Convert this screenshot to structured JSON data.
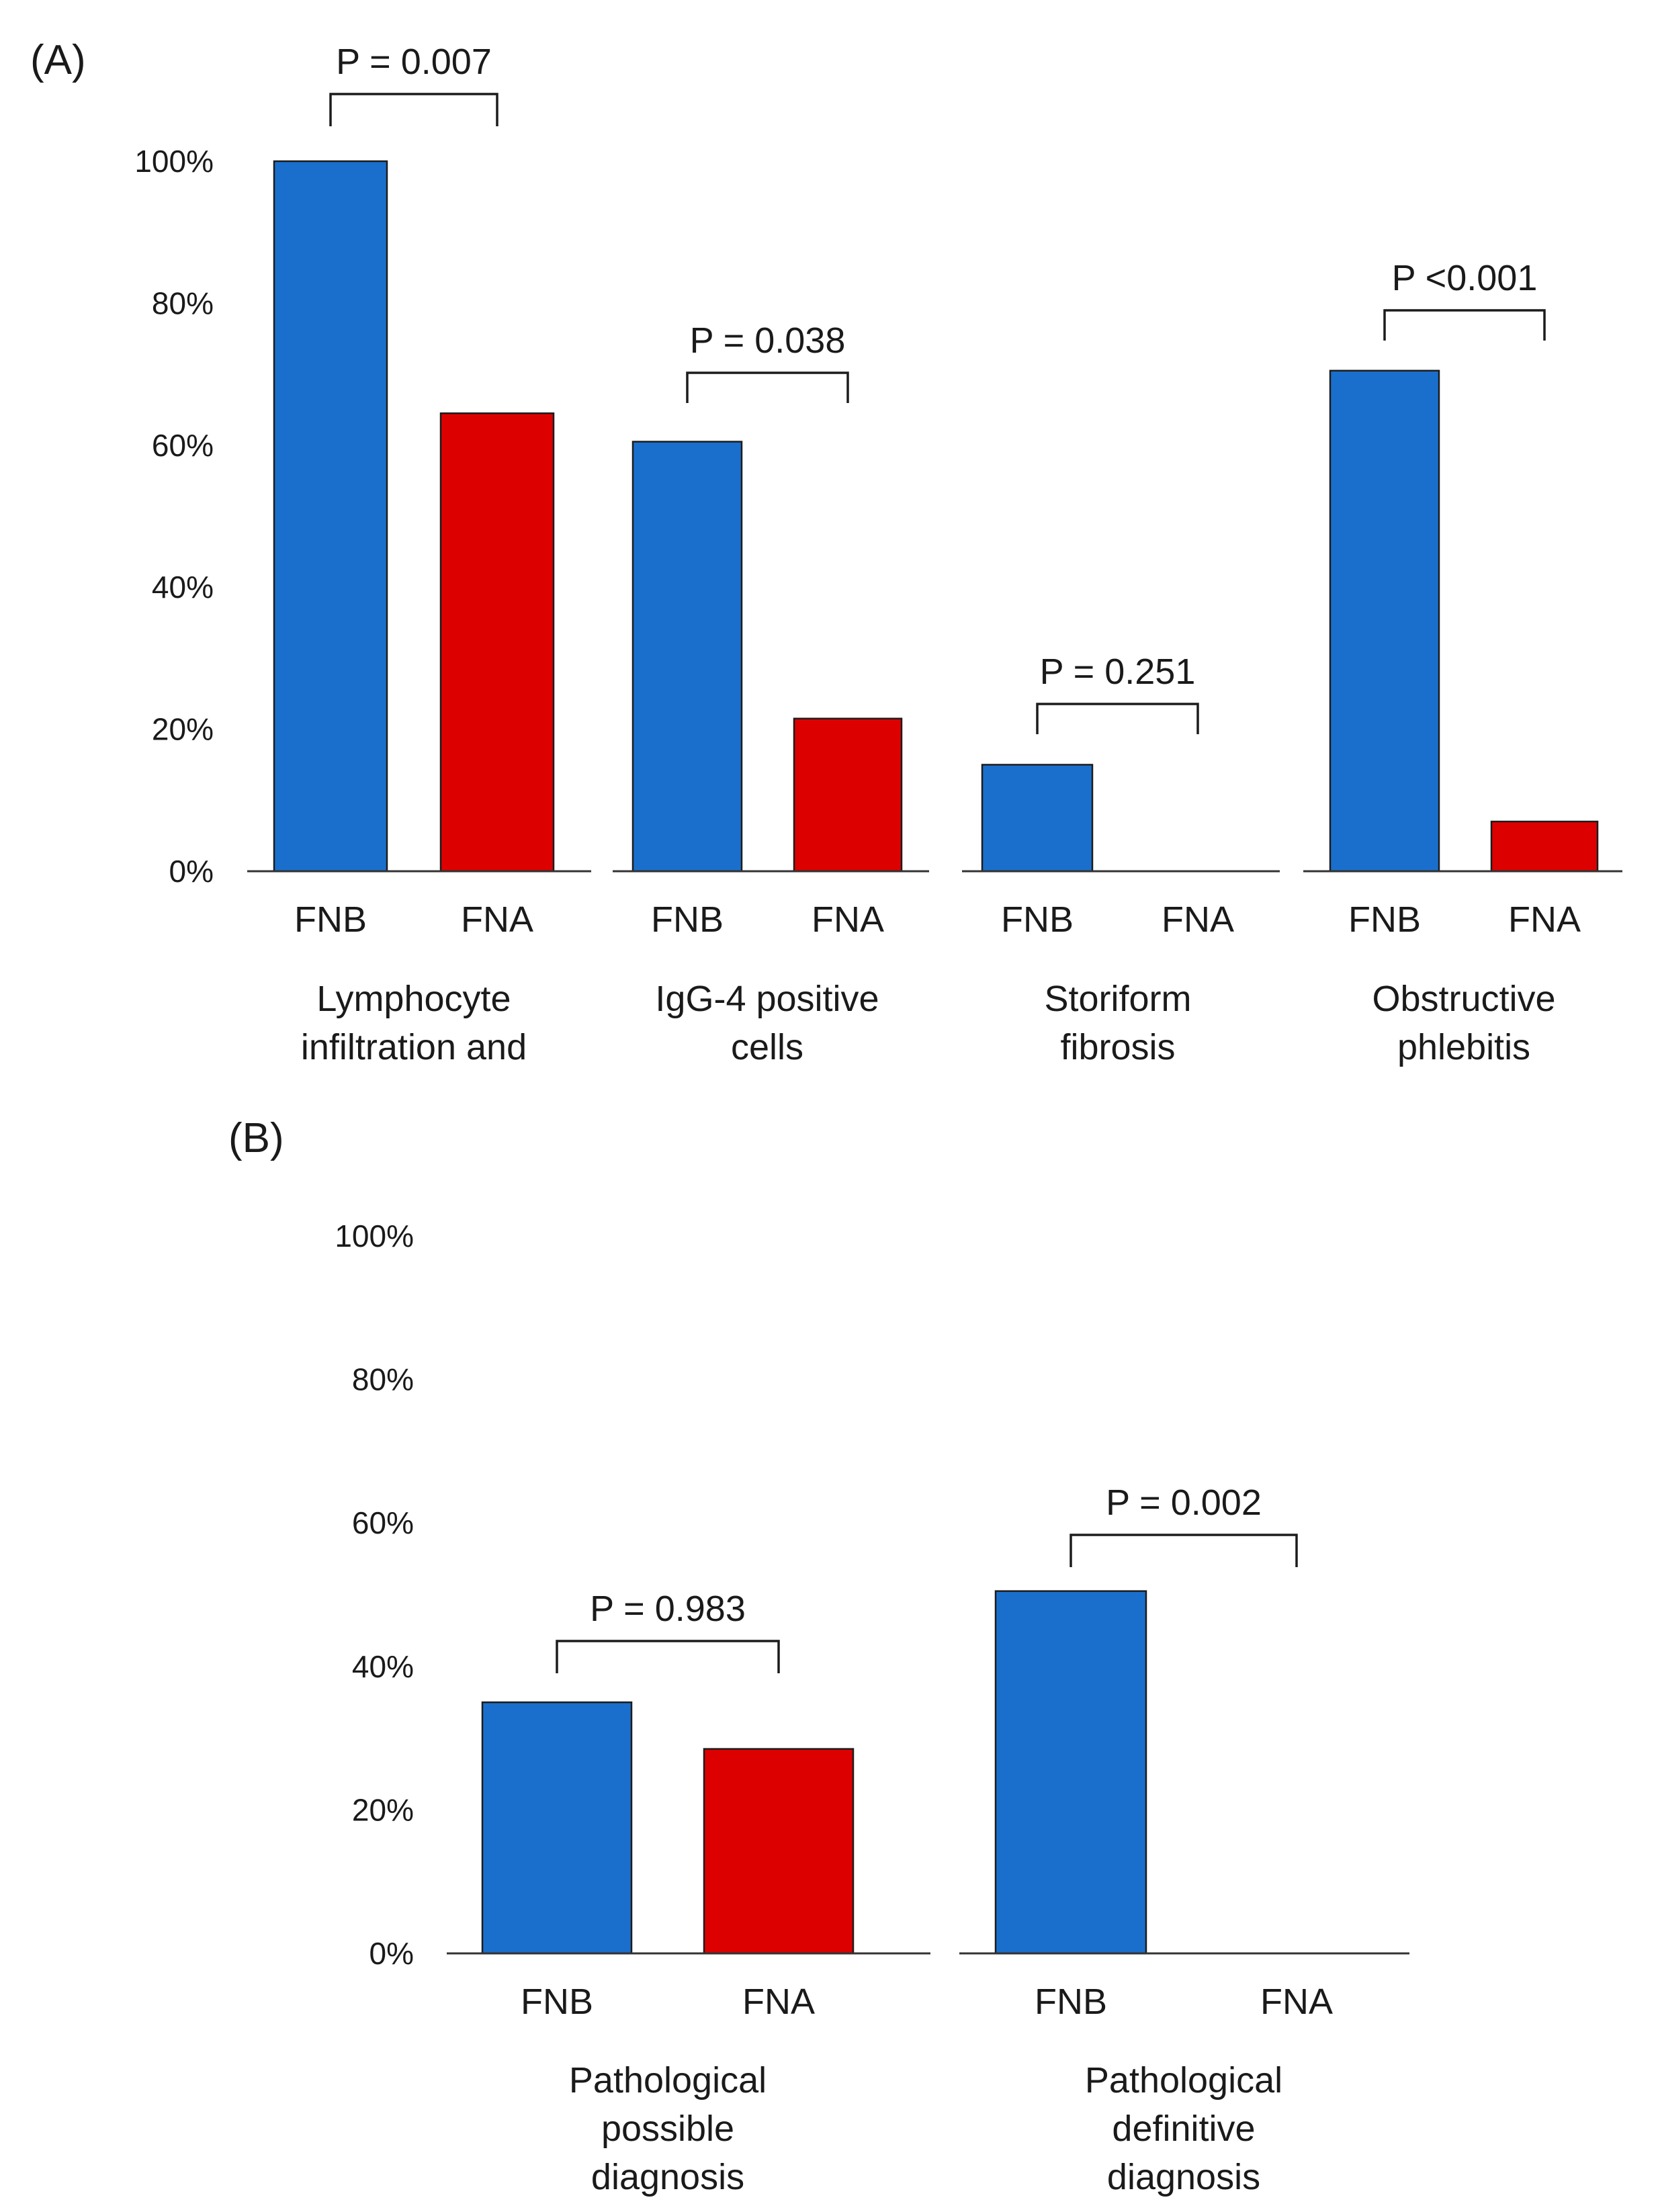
{
  "colors": {
    "FNB": "#1a6fcc",
    "FNA": "#dd0000",
    "axis": "#333333",
    "text": "#1a1a1a"
  },
  "chart_data": [
    {
      "type": "bar",
      "panel_label": "(A)",
      "title": "",
      "xlabel": "",
      "ylabel": "",
      "ylim": [
        0,
        100
      ],
      "yticks": [
        "0%",
        "20%",
        "40%",
        "60%",
        "80%",
        "100%"
      ],
      "grid": false,
      "groups": [
        {
          "label_lines": [
            "Lymphocyte",
            "infiltration and"
          ],
          "bars": [
            {
              "series": "FNB",
              "value": 100
            },
            {
              "series": "FNA",
              "value": 64.5
            }
          ],
          "p_value": "P = 0.007"
        },
        {
          "label_lines": [
            "IgG-4 positive",
            "cells"
          ],
          "bars": [
            {
              "series": "FNB",
              "value": 60.5
            },
            {
              "series": "FNA",
              "value": 21.5
            }
          ],
          "p_value": "P = 0.038"
        },
        {
          "label_lines": [
            "Storiform",
            "fibrosis"
          ],
          "bars": [
            {
              "series": "FNB",
              "value": 15
            },
            {
              "series": "FNA",
              "value": 0
            }
          ],
          "p_value": "P = 0.251"
        },
        {
          "label_lines": [
            "Obstructive",
            "phlebitis"
          ],
          "bars": [
            {
              "series": "FNB",
              "value": 70.5
            },
            {
              "series": "FNA",
              "value": 7
            }
          ],
          "p_value": "P <0.001"
        }
      ]
    },
    {
      "type": "bar",
      "panel_label": "(B)",
      "title": "",
      "xlabel": "",
      "ylabel": "",
      "ylim": [
        0,
        100
      ],
      "yticks": [
        "0%",
        "20%",
        "40%",
        "60%",
        "80%",
        "100%"
      ],
      "grid": false,
      "groups": [
        {
          "label_lines": [
            "Pathological",
            "possible",
            "diagnosis"
          ],
          "bars": [
            {
              "series": "FNB",
              "value": 35
            },
            {
              "series": "FNA",
              "value": 28.5
            }
          ],
          "p_value": "P = 0.983"
        },
        {
          "label_lines": [
            "Pathological",
            "definitive",
            "diagnosis"
          ],
          "bars": [
            {
              "series": "FNB",
              "value": 50.5
            },
            {
              "series": "FNA",
              "value": 0
            }
          ],
          "p_value": "P = 0.002"
        }
      ]
    }
  ]
}
